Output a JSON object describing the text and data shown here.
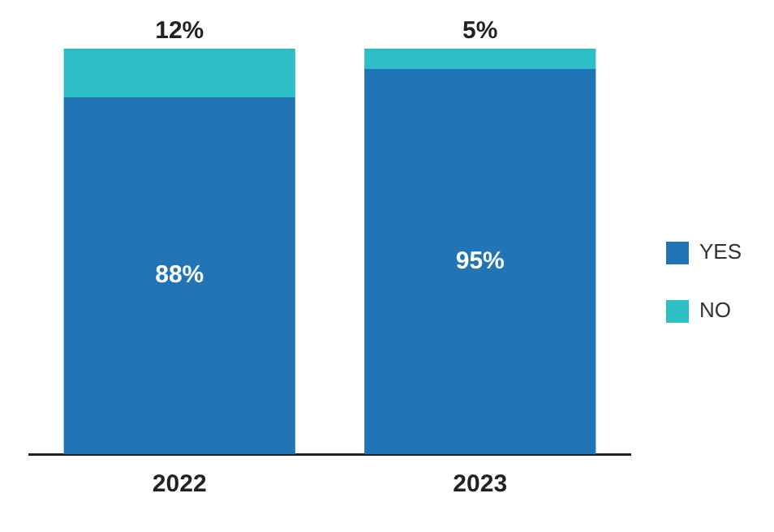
{
  "chart_data": {
    "type": "bar",
    "stacked": true,
    "categories": [
      "2022",
      "2023"
    ],
    "series": [
      {
        "name": "YES",
        "color": "#2174b5",
        "values": [
          88,
          95
        ],
        "value_labels": [
          "88%",
          "95%"
        ]
      },
      {
        "name": "NO",
        "color": "#2cc0c6",
        "values": [
          12,
          5
        ],
        "value_labels": [
          "12%",
          "5%"
        ]
      }
    ],
    "tick_labels": "x",
    "legend": "right",
    "grid": false
  }
}
